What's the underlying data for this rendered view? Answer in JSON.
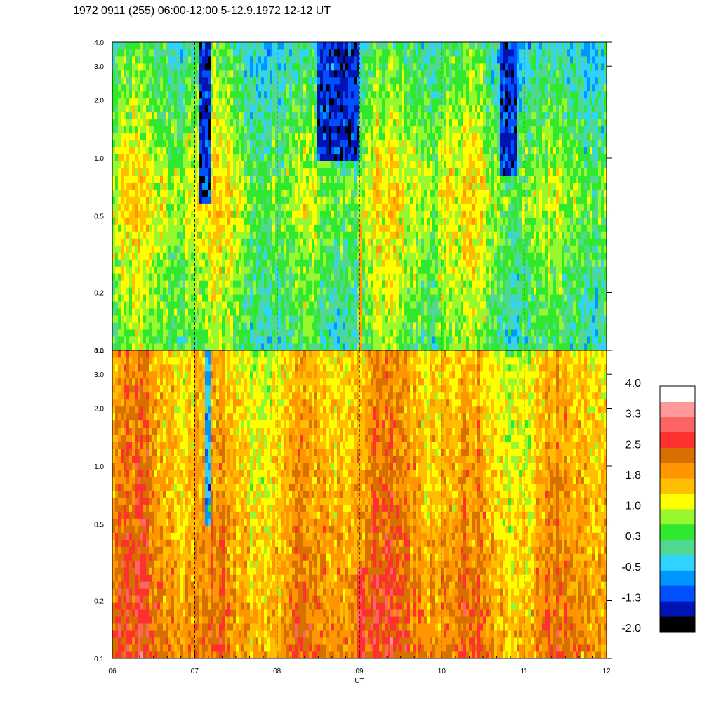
{
  "chart_data": {
    "type": "heatmap",
    "title": "1972 0911 (255) 06:00-12:00 5-12.9.1972  12-12 UT",
    "xlabel": "UT",
    "xlim": [
      6,
      12
    ],
    "x_ticks": [
      "06",
      "07",
      "08",
      "09",
      "10",
      "11",
      "12"
    ],
    "dashed_hour_lines": [
      7,
      8,
      9,
      10,
      11
    ],
    "y_scale": "log",
    "ylim": [
      0.1,
      4.0
    ],
    "y_ticks": [
      "4.0",
      "3.0",
      "2.0",
      "1.0",
      "0.5",
      "0.2",
      "0.1"
    ],
    "panels": [
      {
        "id": "top",
        "description": "spectrogram panel 1",
        "dominant_level_low_freq": 0.3,
        "dominant_level_mid_freq": 1.0,
        "dominant_level_high_freq": 0.0,
        "depletion_features": [
          {
            "t_start": 7.05,
            "t_end": 7.2,
            "f_min": 0.6,
            "f_max": 4.0,
            "level": -1.3
          },
          {
            "t_start": 8.5,
            "t_end": 9.0,
            "f_min": 1.0,
            "f_max": 4.0,
            "level": -1.3
          },
          {
            "t_start": 10.7,
            "t_end": 10.9,
            "f_min": 0.8,
            "f_max": 4.0,
            "level": -1.3
          }
        ],
        "enhancement_features": [
          {
            "t_start": 9.0,
            "t_end": 9.05,
            "f_min": 0.1,
            "f_max": 0.5,
            "level": 1.8
          }
        ]
      },
      {
        "id": "bottom",
        "description": "spectrogram panel 2",
        "dominant_level_low_freq": 2.2,
        "dominant_level_mid_freq": 1.8,
        "dominant_level_high_freq": 1.5,
        "depletion_features": [
          {
            "t_start": 7.12,
            "t_end": 7.18,
            "f_min": 0.5,
            "f_max": 4.0,
            "level": -0.5
          }
        ],
        "enhancement_features": [
          {
            "t_start": 8.97,
            "t_end": 9.07,
            "f_min": 0.1,
            "f_max": 0.3,
            "level": 2.8
          }
        ]
      }
    ],
    "colorbar": {
      "ticks": [
        "4.0",
        "3.3",
        "2.5",
        "1.8",
        "1.0",
        "0.3",
        "-0.5",
        "-1.3",
        "-2.0"
      ],
      "range": [
        -2.0,
        4.0
      ],
      "colors": [
        "#000000",
        "#0014b4",
        "#0050ff",
        "#0096ff",
        "#30d2ff",
        "#50d890",
        "#30e830",
        "#98f830",
        "#ffff00",
        "#ffbe00",
        "#ff9600",
        "#d87000",
        "#ff3030",
        "#ff6464",
        "#ff9898",
        "#ffffff"
      ]
    }
  }
}
